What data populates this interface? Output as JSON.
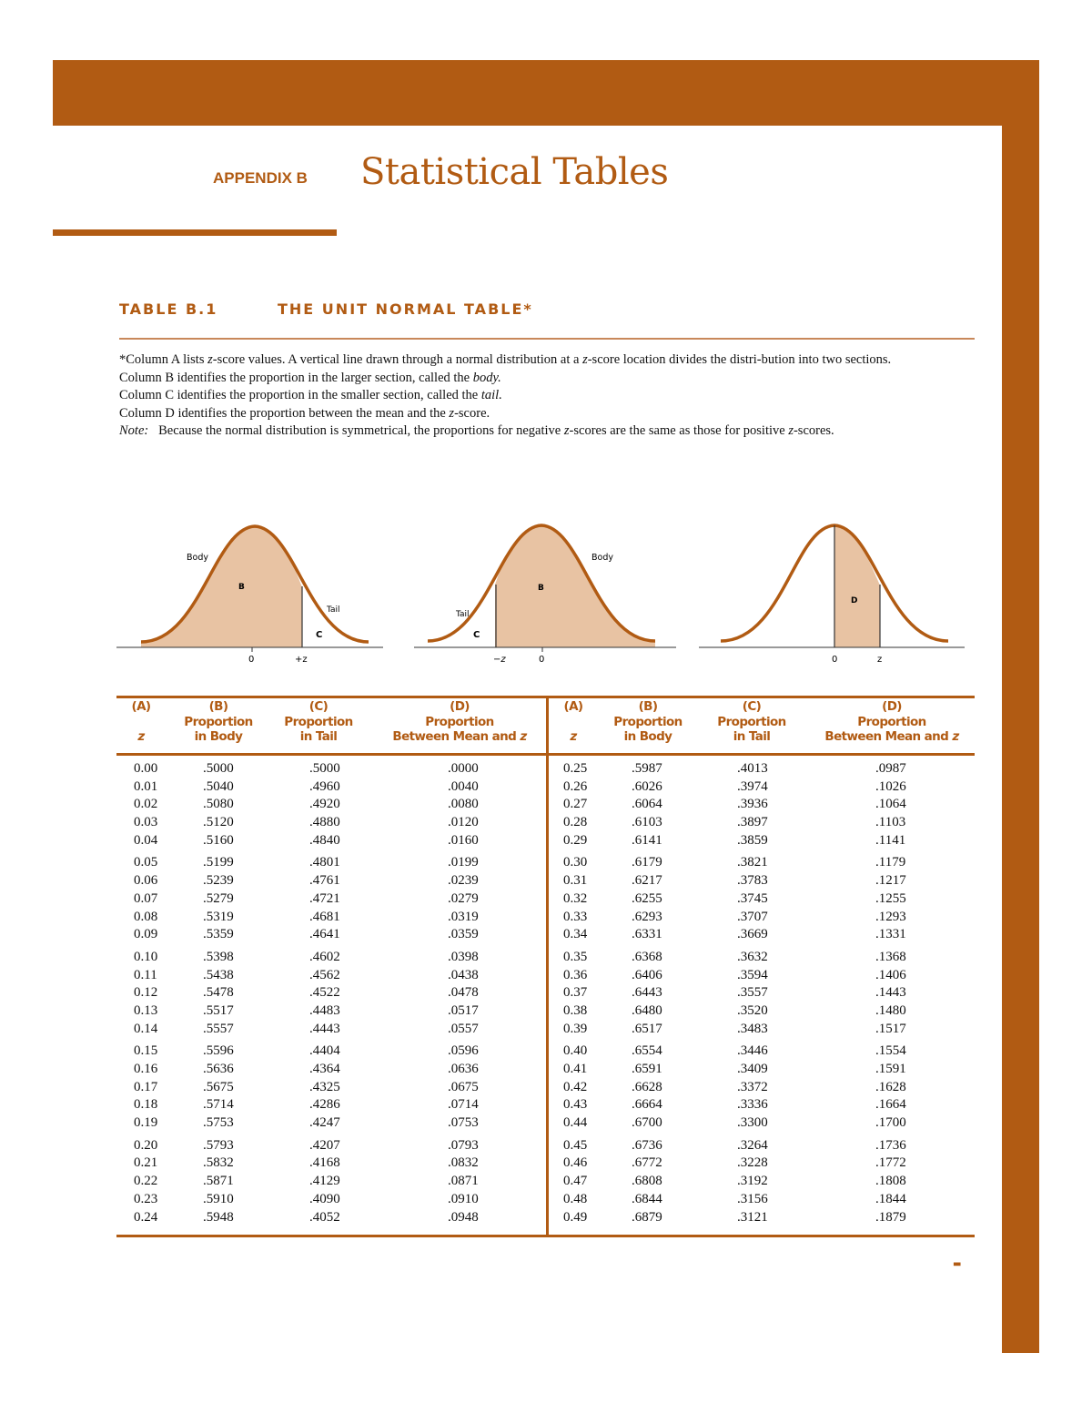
{
  "header": {
    "appendix_label": "APPENDIX B",
    "title": "Statistical Tables"
  },
  "table": {
    "label": "TABLE B.1",
    "name": "THE UNIT NORMAL TABLE*"
  },
  "notes": {
    "line1a": "*Column A lists ",
    "line1z": "z",
    "line1b": "-score values. A vertical line drawn through a normal distribution at a ",
    "line1z2": "z",
    "line1c": "-score location divides the distri-bution into two sections.",
    "line2a": "Column B identifies the proportion in the larger section, called the ",
    "line2i": "body.",
    "line3a": "Column C identifies the proportion in the smaller section, called the ",
    "line3i": "tail.",
    "line4a": "Column D identifies the proportion between the mean and the ",
    "line4z": "z",
    "line4b": "-score.",
    "note_label": "Note:",
    "note_a": "   Because the normal distribution is symmetrical, the proportions for negative ",
    "note_z": "z",
    "note_b": "-scores are the same as those for positive ",
    "note_z2": "z",
    "note_c": "-scores."
  },
  "figures": {
    "fig1": {
      "body": "Body",
      "b": "B",
      "tail": "Tail",
      "c": "C",
      "zero": "0",
      "z": "+z"
    },
    "fig2": {
      "body": "Body",
      "b": "B",
      "tail": "Tail",
      "c": "C",
      "zero": "0",
      "z": "−z"
    },
    "fig3": {
      "d": "D",
      "zero": "0",
      "z": "z"
    }
  },
  "columns": {
    "a": {
      "letter": "(A)",
      "line2": "",
      "line3": "z"
    },
    "b": {
      "letter": "(B)",
      "line2": "Proportion",
      "line3": "in Body"
    },
    "c": {
      "letter": "(C)",
      "line2": "Proportion",
      "line3": "in Tail"
    },
    "d": {
      "letter": "(D)",
      "line2": "Proportion",
      "line3": "Between Mean and ",
      "line3z": "z"
    }
  },
  "colors": {
    "accent": "#b15b13",
    "fill": "#e8c3a3",
    "rule": "#c8885a"
  },
  "chart_data": {
    "type": "table",
    "title": "The Unit Normal Table",
    "headers": [
      "z",
      "Proportion in Body",
      "Proportion in Tail",
      "Proportion Between Mean and z"
    ],
    "left": {
      "z": [
        "0.00",
        "0.01",
        "0.02",
        "0.03",
        "0.04",
        "0.05",
        "0.06",
        "0.07",
        "0.08",
        "0.09",
        "0.10",
        "0.11",
        "0.12",
        "0.13",
        "0.14",
        "0.15",
        "0.16",
        "0.17",
        "0.18",
        "0.19",
        "0.20",
        "0.21",
        "0.22",
        "0.23",
        "0.24"
      ],
      "body": [
        ".5000",
        ".5040",
        ".5080",
        ".5120",
        ".5160",
        ".5199",
        ".5239",
        ".5279",
        ".5319",
        ".5359",
        ".5398",
        ".5438",
        ".5478",
        ".5517",
        ".5557",
        ".5596",
        ".5636",
        ".5675",
        ".5714",
        ".5753",
        ".5793",
        ".5832",
        ".5871",
        ".5910",
        ".5948"
      ],
      "tail": [
        ".5000",
        ".4960",
        ".4920",
        ".4880",
        ".4840",
        ".4801",
        ".4761",
        ".4721",
        ".4681",
        ".4641",
        ".4602",
        ".4562",
        ".4522",
        ".4483",
        ".4443",
        ".4404",
        ".4364",
        ".4325",
        ".4286",
        ".4247",
        ".4207",
        ".4168",
        ".4129",
        ".4090",
        ".4052"
      ],
      "mean": [
        ".0000",
        ".0040",
        ".0080",
        ".0120",
        ".0160",
        ".0199",
        ".0239",
        ".0279",
        ".0319",
        ".0359",
        ".0398",
        ".0438",
        ".0478",
        ".0517",
        ".0557",
        ".0596",
        ".0636",
        ".0675",
        ".0714",
        ".0753",
        ".0793",
        ".0832",
        ".0871",
        ".0910",
        ".0948"
      ]
    },
    "right": {
      "z": [
        "0.25",
        "0.26",
        "0.27",
        "0.28",
        "0.29",
        "0.30",
        "0.31",
        "0.32",
        "0.33",
        "0.34",
        "0.35",
        "0.36",
        "0.37",
        "0.38",
        "0.39",
        "0.40",
        "0.41",
        "0.42",
        "0.43",
        "0.44",
        "0.45",
        "0.46",
        "0.47",
        "0.48",
        "0.49"
      ],
      "body": [
        ".5987",
        ".6026",
        ".6064",
        ".6103",
        ".6141",
        ".6179",
        ".6217",
        ".6255",
        ".6293",
        ".6331",
        ".6368",
        ".6406",
        ".6443",
        ".6480",
        ".6517",
        ".6554",
        ".6591",
        ".6628",
        ".6664",
        ".6700",
        ".6736",
        ".6772",
        ".6808",
        ".6844",
        ".6879"
      ],
      "tail": [
        ".4013",
        ".3974",
        ".3936",
        ".3897",
        ".3859",
        ".3821",
        ".3783",
        ".3745",
        ".3707",
        ".3669",
        ".3632",
        ".3594",
        ".3557",
        ".3520",
        ".3483",
        ".3446",
        ".3409",
        ".3372",
        ".3336",
        ".3300",
        ".3264",
        ".3228",
        ".3192",
        ".3156",
        ".3121"
      ],
      "mean": [
        ".0987",
        ".1026",
        ".1064",
        ".1103",
        ".1141",
        ".1179",
        ".1217",
        ".1255",
        ".1293",
        ".1331",
        ".1368",
        ".1406",
        ".1443",
        ".1480",
        ".1517",
        ".1554",
        ".1591",
        ".1628",
        ".1664",
        ".1700",
        ".1736",
        ".1772",
        ".1808",
        ".1844",
        ".1879"
      ]
    }
  }
}
